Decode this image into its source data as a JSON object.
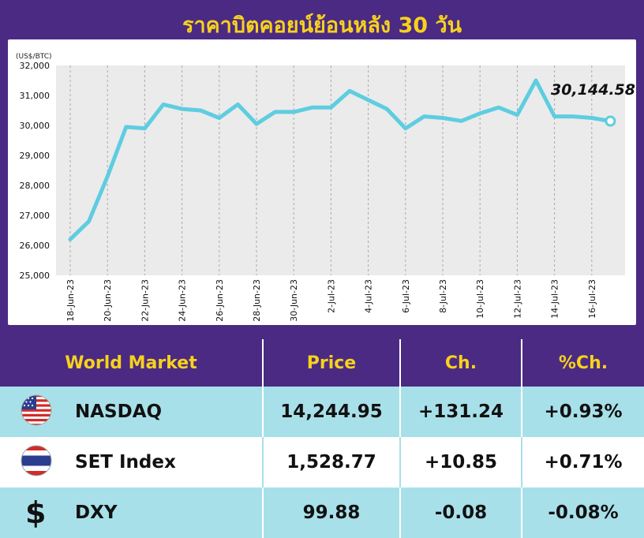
{
  "header": {
    "title": "ราคาบิตคอยน์ย้อนหลัง 30 วัน"
  },
  "chart_data": {
    "type": "line",
    "unit_label": "(US$/BTC)",
    "y_ticks": [
      "32,000",
      "31,000",
      "30,000",
      "29,000",
      "28,000",
      "27,000",
      "26,000",
      "25,000"
    ],
    "ylim": [
      25000,
      32000
    ],
    "x_tick_labels": [
      "18-Jun-23",
      "20-Jun-23",
      "22-Jun-23",
      "24-Jun-23",
      "26-Jun-23",
      "28-Jun-23",
      "30-Jun-23",
      "2-Jul-23",
      "4-Jul-23",
      "6-Jul-23",
      "8-Jul-23",
      "10-Jul-23",
      "12-Jul-23",
      "14-Jul-23",
      "16-Jul-23"
    ],
    "x": [
      "18-Jun-23",
      "19-Jun-23",
      "20-Jun-23",
      "21-Jun-23",
      "22-Jun-23",
      "23-Jun-23",
      "24-Jun-23",
      "25-Jun-23",
      "26-Jun-23",
      "27-Jun-23",
      "28-Jun-23",
      "29-Jun-23",
      "30-Jun-23",
      "1-Jul-23",
      "2-Jul-23",
      "3-Jul-23",
      "4-Jul-23",
      "5-Jul-23",
      "6-Jul-23",
      "7-Jul-23",
      "8-Jul-23",
      "9-Jul-23",
      "10-Jul-23",
      "11-Jul-23",
      "12-Jul-23",
      "13-Jul-23",
      "14-Jul-23",
      "15-Jul-23",
      "16-Jul-23",
      "17-Jul-23"
    ],
    "values": [
      26200,
      26800,
      28300,
      29950,
      29900,
      30700,
      30550,
      30500,
      30250,
      30700,
      30050,
      30450,
      30450,
      30600,
      30600,
      31150,
      30850,
      30550,
      29900,
      30300,
      30250,
      30150,
      30400,
      30600,
      30350,
      31500,
      30300,
      30300,
      30250,
      30144.58
    ],
    "last_value_label": "30,144.58",
    "line_color": "#5ecde0",
    "grid": "vertical dashed",
    "background": "#ebebeb"
  },
  "market_table": {
    "headers": {
      "name": "World Market",
      "price": "Price",
      "change": "Ch.",
      "pct_change": "%Ch."
    },
    "rows": [
      {
        "icon": "us-flag-icon",
        "name": "NASDAQ",
        "price": "14,244.95",
        "change": "+131.24",
        "pct_change": "+0.93%"
      },
      {
        "icon": "thai-flag-icon",
        "name": "SET Index",
        "price": "1,528.77",
        "change": "+10.85",
        "pct_change": "+0.71%"
      },
      {
        "icon": "dollar-sign-icon",
        "name": "DXY",
        "price": "99.88",
        "change": "-0.08",
        "pct_change": "-0.08%",
        "symbol": "$"
      }
    ]
  },
  "colors": {
    "background": "#4b2a83",
    "title": "#f6d21c",
    "row_alt": "#a8e0ea"
  }
}
